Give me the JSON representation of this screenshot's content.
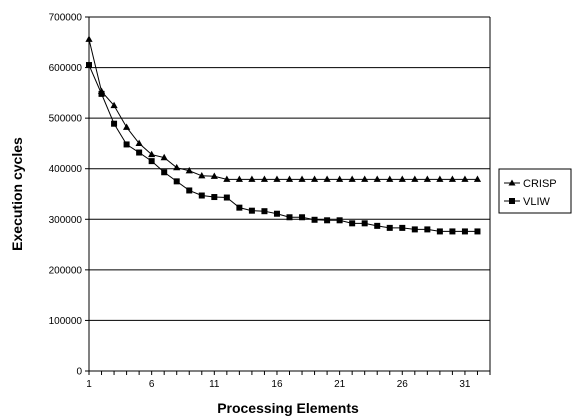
{
  "chart_data": {
    "type": "line",
    "title": "",
    "xlabel": "Processing Elements",
    "ylabel": "Execution cycles",
    "x": [
      1,
      2,
      3,
      4,
      5,
      6,
      7,
      8,
      9,
      10,
      11,
      12,
      13,
      14,
      15,
      16,
      17,
      18,
      19,
      20,
      21,
      22,
      23,
      24,
      25,
      26,
      27,
      28,
      29,
      30,
      31,
      32
    ],
    "xlim": [
      1,
      33
    ],
    "xticks": [
      1,
      6,
      11,
      16,
      21,
      26,
      31
    ],
    "xtick_labels": [
      "1",
      "6",
      "11",
      "16",
      "21",
      "26",
      "31"
    ],
    "ylim": [
      0,
      700000
    ],
    "yticks": [
      0,
      100000,
      200000,
      300000,
      400000,
      500000,
      600000,
      700000
    ],
    "ytick_labels": [
      "0",
      "100000",
      "200000",
      "300000",
      "400000",
      "500000",
      "600000",
      "700000"
    ],
    "grid": "horizontal",
    "legend_position": "right",
    "series": [
      {
        "name": "CRISP",
        "marker": "triangle",
        "color": "#000000",
        "values": [
          656000,
          553000,
          525000,
          482000,
          450000,
          428000,
          422000,
          402000,
          396000,
          386000,
          385000,
          379000,
          379000,
          379000,
          379000,
          379000,
          379000,
          379000,
          379000,
          379000,
          379000,
          379000,
          379000,
          379000,
          379000,
          379000,
          379000,
          379000,
          379000,
          379000,
          379000,
          379000
        ]
      },
      {
        "name": "VLIW",
        "marker": "square",
        "color": "#000000",
        "values": [
          605000,
          548000,
          489000,
          448000,
          432000,
          415000,
          393000,
          375000,
          357000,
          347000,
          344000,
          343000,
          323000,
          317000,
          316000,
          311000,
          304000,
          304000,
          299000,
          298000,
          298000,
          292000,
          292000,
          287000,
          283000,
          283000,
          280000,
          280000,
          276000,
          276000,
          276000,
          276000
        ]
      }
    ]
  }
}
